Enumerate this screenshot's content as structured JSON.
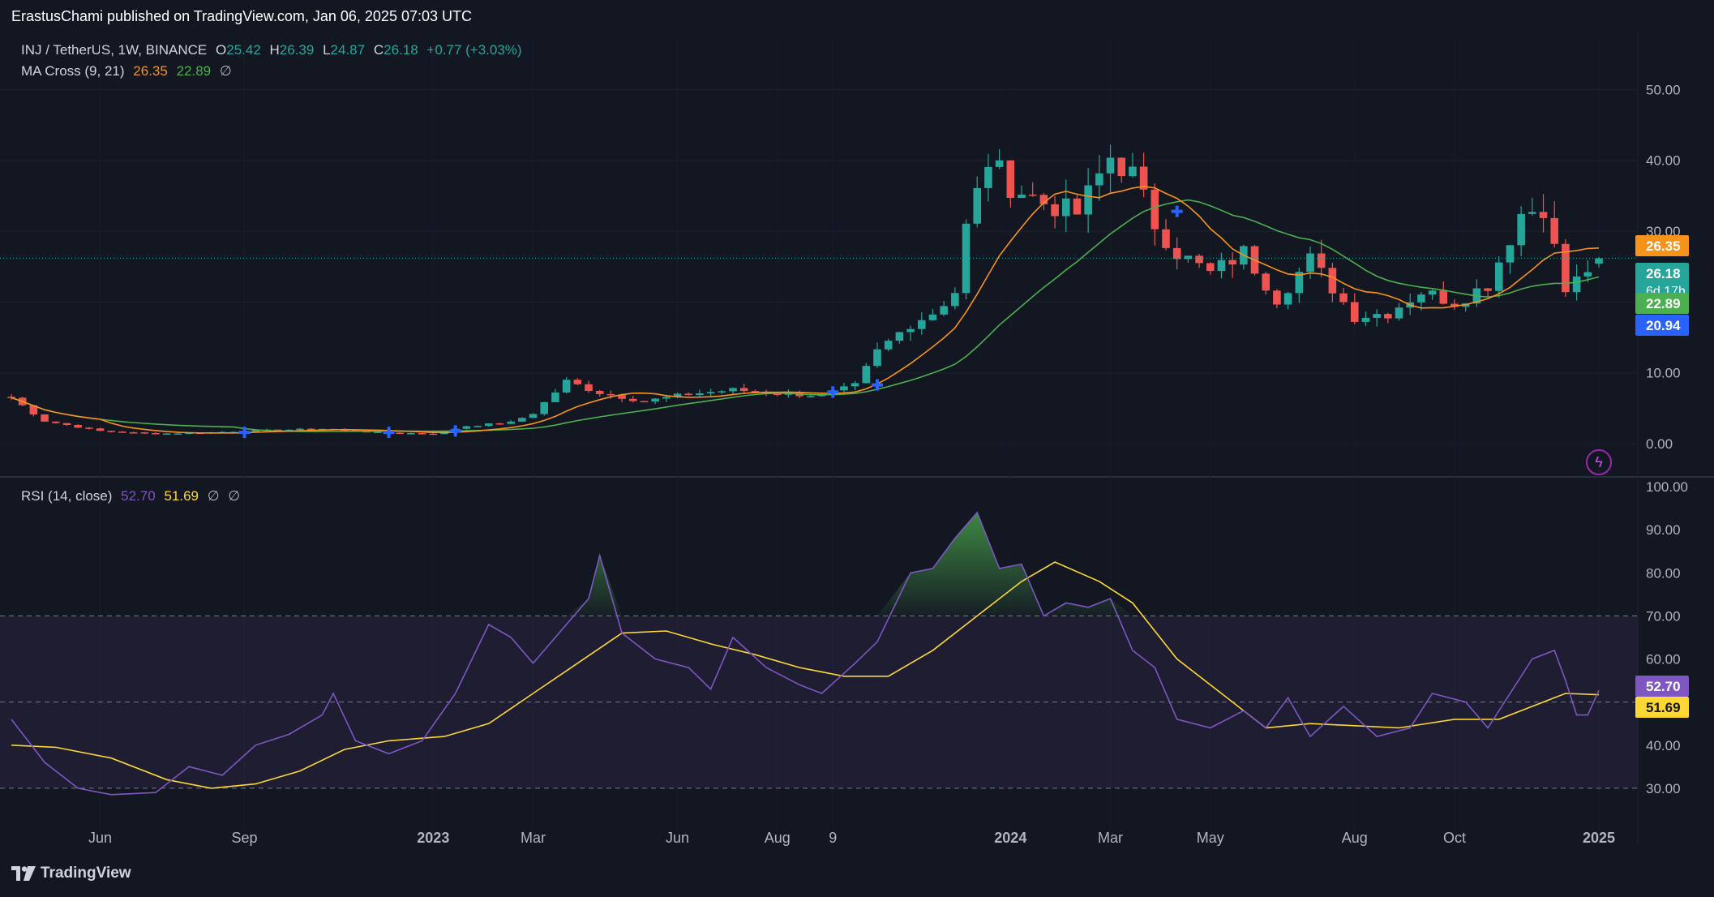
{
  "header": {
    "published": "ErastusChami published on TradingView.com, Jan 06, 2025 07:03 UTC"
  },
  "legend": {
    "symbol": "INJ / TetherUS, 1W, BINANCE",
    "o_label": "O",
    "o_value": "25.42",
    "h_label": "H",
    "h_value": "26.39",
    "l_label": "L",
    "l_value": "24.87",
    "c_label": "C",
    "c_value": "26.18",
    "change": "+0.77 (+3.03%)",
    "ma_label": "MA Cross (9, 21)",
    "ma_fast": "26.35",
    "ma_slow": "22.89",
    "ma_extra": "∅",
    "rsi_label": "RSI (14, close)",
    "rsi_value": "52.70",
    "rsi_ma": "51.69",
    "rsi_extra1": "∅",
    "rsi_extra2": "∅"
  },
  "footer": {
    "brand": "TradingView"
  },
  "colors": {
    "background": "#131722",
    "up": "#26a69a",
    "down": "#ef5350",
    "ma_fast": "#f7931a",
    "ma_slow": "#4caf50",
    "rsi": "#7e57c2",
    "rsi_ma": "#fdd835",
    "cross": "#2962ff"
  },
  "chart_data": [
    {
      "type": "candlestick",
      "title": "INJ / TetherUS, 1W, BINANCE",
      "y_ticks": [
        "50.00",
        "40.00",
        "30.00",
        "20.00",
        "10.00",
        "0.00"
      ],
      "ylim": [
        -4,
        56
      ],
      "x_ticks": [
        "Jun",
        "Sep",
        "2023",
        "Mar",
        "Jun",
        "Aug",
        "9",
        "2024",
        "Mar",
        "May",
        "Aug",
        "Oct",
        "2025"
      ],
      "price_labels": [
        {
          "text": "26.35",
          "value": 26.35,
          "color": "#f7931a"
        },
        {
          "text": "26.18",
          "value": 26.18,
          "color": "#26a69a",
          "sub": "6d 17h"
        },
        {
          "text": "22.89",
          "value": 22.89,
          "color": "#4caf50"
        },
        {
          "text": "20.94",
          "value": 20.94,
          "color": "#2962ff"
        }
      ],
      "series": [
        {
          "name": "MA 9",
          "color": "#f7931a"
        },
        {
          "name": "MA 21",
          "color": "#4caf50"
        }
      ],
      "anchors": [
        [
          "2022-04-11",
          6.5
        ],
        [
          "2022-05-02",
          3.2
        ],
        [
          "2022-06-06",
          1.8
        ],
        [
          "2022-07-11",
          1.4
        ],
        [
          "2022-08-15",
          1.6
        ],
        [
          "2022-09-19",
          1.9
        ],
        [
          "2022-10-24",
          2.1
        ],
        [
          "2022-11-28",
          1.6
        ],
        [
          "2023-01-02",
          1.4
        ],
        [
          "2023-01-23",
          2.5
        ],
        [
          "2023-02-20",
          3.0
        ],
        [
          "2023-03-06",
          4.3
        ],
        [
          "2023-03-27",
          8.8
        ],
        [
          "2023-04-17",
          7.2
        ],
        [
          "2023-05-15",
          6.0
        ],
        [
          "2023-06-12",
          7.0
        ],
        [
          "2023-07-10",
          7.6
        ],
        [
          "2023-08-07",
          7.1
        ],
        [
          "2023-09-04",
          6.8
        ],
        [
          "2023-09-25",
          8.2
        ],
        [
          "2023-10-09",
          13.0
        ],
        [
          "2023-10-30",
          17.0
        ],
        [
          "2023-11-13",
          18.5
        ],
        [
          "2023-11-27",
          21.5
        ],
        [
          "2023-12-04",
          30.5
        ],
        [
          "2023-12-18",
          40.0
        ],
        [
          "2024-01-01",
          36.5
        ],
        [
          "2024-01-22",
          34.0
        ],
        [
          "2024-02-12",
          32.5
        ],
        [
          "2024-03-04",
          40.5
        ],
        [
          "2024-03-18",
          38.0
        ],
        [
          "2024-04-01",
          31.0
        ],
        [
          "2024-04-15",
          27.0
        ],
        [
          "2024-05-06",
          24.0
        ],
        [
          "2024-05-27",
          27.0
        ],
        [
          "2024-06-17",
          20.5
        ],
        [
          "2024-07-08",
          26.0
        ],
        [
          "2024-08-05",
          18.0
        ],
        [
          "2024-08-26",
          18.5
        ],
        [
          "2024-09-16",
          21.5
        ],
        [
          "2024-10-07",
          20.0
        ],
        [
          "2024-10-28",
          22.5
        ],
        [
          "2024-11-18",
          32.5
        ],
        [
          "2024-12-02",
          33.5
        ],
        [
          "2024-12-16",
          21.5
        ],
        [
          "2025-01-06",
          26.18
        ]
      ],
      "cross_markers": [
        [
          "2022-09-05",
          1.6
        ],
        [
          "2022-12-05",
          1.6
        ],
        [
          "2023-01-16",
          1.8
        ],
        [
          "2023-09-11",
          7.3
        ],
        [
          "2023-10-09",
          8.3
        ],
        [
          "2024-04-15",
          32.8
        ]
      ]
    },
    {
      "type": "line",
      "title": "RSI (14, close)",
      "y_ticks": [
        "100.00",
        "90.00",
        "80.00",
        "70.00",
        "60.00",
        "50.00",
        "40.00",
        "30.00"
      ],
      "ylim": [
        20,
        100
      ],
      "bands": {
        "upper": 70,
        "lower": 30,
        "mid": 50
      },
      "price_labels": [
        {
          "text": "52.70",
          "value": 52.7,
          "color": "#7e57c2"
        },
        {
          "text": "51.69",
          "value": 51.69,
          "color": "#fdd835"
        }
      ],
      "series": [
        {
          "name": "RSI",
          "color": "#7e57c2",
          "points": [
            [
              "2022-04-11",
              46
            ],
            [
              "2022-05-02",
              36
            ],
            [
              "2022-05-23",
              30
            ],
            [
              "2022-06-13",
              28.5
            ],
            [
              "2022-07-11",
              29
            ],
            [
              "2022-08-01",
              35
            ],
            [
              "2022-08-22",
              33
            ],
            [
              "2022-09-12",
              40
            ],
            [
              "2022-10-03",
              42.5
            ],
            [
              "2022-10-24",
              47
            ],
            [
              "2022-10-31",
              52
            ],
            [
              "2022-11-14",
              41
            ],
            [
              "2022-12-05",
              38
            ],
            [
              "2022-12-26",
              41
            ],
            [
              "2023-01-16",
              52
            ],
            [
              "2023-02-06",
              68
            ],
            [
              "2023-02-20",
              65
            ],
            [
              "2023-03-06",
              59
            ],
            [
              "2023-03-27",
              68
            ],
            [
              "2023-04-10",
              74
            ],
            [
              "2023-04-17",
              84
            ],
            [
              "2023-05-01",
              66
            ],
            [
              "2023-05-22",
              60
            ],
            [
              "2023-06-12",
              58
            ],
            [
              "2023-06-26",
              53
            ],
            [
              "2023-07-10",
              65
            ],
            [
              "2023-07-31",
              58
            ],
            [
              "2023-08-21",
              54
            ],
            [
              "2023-09-04",
              52
            ],
            [
              "2023-09-25",
              59
            ],
            [
              "2023-10-09",
              64
            ],
            [
              "2023-10-30",
              80
            ],
            [
              "2023-11-13",
              81
            ],
            [
              "2023-11-27",
              88
            ],
            [
              "2023-12-11",
              94
            ],
            [
              "2023-12-25",
              81
            ],
            [
              "2024-01-08",
              82
            ],
            [
              "2024-01-22",
              70
            ],
            [
              "2024-02-05",
              73
            ],
            [
              "2024-02-19",
              72
            ],
            [
              "2024-03-04",
              74
            ],
            [
              "2024-03-18",
              62
            ],
            [
              "2024-04-01",
              58
            ],
            [
              "2024-04-15",
              46
            ],
            [
              "2024-05-06",
              44
            ],
            [
              "2024-05-27",
              48
            ],
            [
              "2024-06-10",
              44
            ],
            [
              "2024-06-24",
              51
            ],
            [
              "2024-07-08",
              42
            ],
            [
              "2024-07-29",
              49
            ],
            [
              "2024-08-19",
              42
            ],
            [
              "2024-09-09",
              44
            ],
            [
              "2024-09-23",
              52
            ],
            [
              "2024-10-14",
              50
            ],
            [
              "2024-10-28",
              44
            ],
            [
              "2024-11-11",
              52
            ],
            [
              "2024-11-25",
              60
            ],
            [
              "2024-12-09",
              62
            ],
            [
              "2024-12-16",
              55
            ],
            [
              "2024-12-23",
              47
            ],
            [
              "2024-12-30",
              47
            ],
            [
              "2025-01-06",
              52.7
            ]
          ]
        },
        {
          "name": "RSI-based MA",
          "color": "#fdd835",
          "points": [
            [
              "2022-04-11",
              40
            ],
            [
              "2022-05-09",
              39.5
            ],
            [
              "2022-06-13",
              37
            ],
            [
              "2022-07-18",
              32
            ],
            [
              "2022-08-15",
              30
            ],
            [
              "2022-09-12",
              31
            ],
            [
              "2022-10-10",
              34
            ],
            [
              "2022-11-07",
              39
            ],
            [
              "2022-12-05",
              41
            ],
            [
              "2023-01-09",
              42
            ],
            [
              "2023-02-06",
              45
            ],
            [
              "2023-03-06",
              52
            ],
            [
              "2023-04-03",
              59
            ],
            [
              "2023-05-01",
              66
            ],
            [
              "2023-05-29",
              66.5
            ],
            [
              "2023-06-26",
              63.5
            ],
            [
              "2023-07-24",
              61
            ],
            [
              "2023-08-21",
              58
            ],
            [
              "2023-09-18",
              56
            ],
            [
              "2023-10-16",
              56
            ],
            [
              "2023-11-13",
              62
            ],
            [
              "2023-12-11",
              70
            ],
            [
              "2024-01-08",
              78
            ],
            [
              "2024-01-29",
              82.5
            ],
            [
              "2024-02-26",
              78
            ],
            [
              "2024-03-18",
              73
            ],
            [
              "2024-04-15",
              60
            ],
            [
              "2024-05-13",
              52
            ],
            [
              "2024-06-10",
              44
            ],
            [
              "2024-07-08",
              45
            ],
            [
              "2024-08-05",
              44.5
            ],
            [
              "2024-09-02",
              44
            ],
            [
              "2024-10-07",
              46
            ],
            [
              "2024-11-04",
              46
            ],
            [
              "2024-12-02",
              50
            ],
            [
              "2024-12-16",
              52
            ],
            [
              "2025-01-06",
              51.69
            ]
          ]
        }
      ]
    }
  ]
}
